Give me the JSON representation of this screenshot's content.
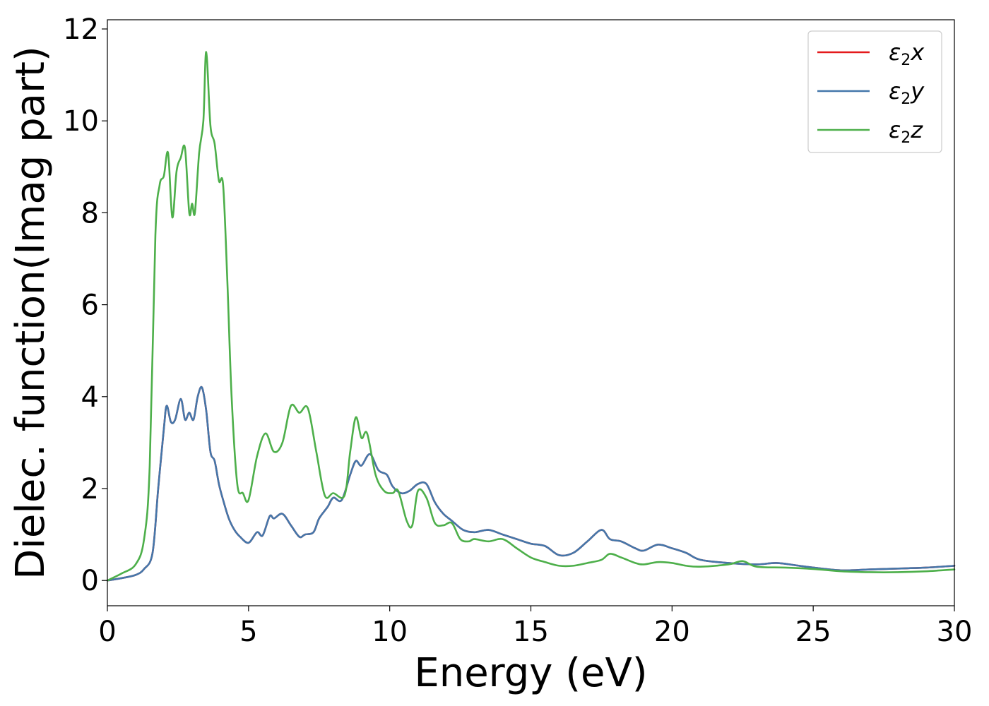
{
  "chart_data": {
    "type": "line",
    "xlabel": "Energy (eV)",
    "ylabel": "Dielec. function(Imag part)",
    "xlim": [
      0,
      30
    ],
    "ylim": [
      -0.55,
      12.2
    ],
    "xticks": [
      0,
      5,
      10,
      15,
      20,
      25,
      30
    ],
    "yticks": [
      0,
      2,
      4,
      6,
      8,
      10,
      12
    ],
    "grid": false,
    "legend_position": "top-right",
    "series": [
      {
        "name": "ε2x",
        "legend_base": "ε",
        "legend_sub": "2",
        "legend_suffix": "x",
        "color": "#e41a1c",
        "x": [
          0,
          0.5,
          1.0,
          1.3,
          1.6,
          1.8,
          2.0,
          2.1,
          2.25,
          2.4,
          2.6,
          2.75,
          2.9,
          3.05,
          3.2,
          3.35,
          3.5,
          3.65,
          3.8,
          3.95,
          4.1,
          4.3,
          4.5,
          4.7,
          5.0,
          5.3,
          5.5,
          5.75,
          5.9,
          6.2,
          6.5,
          6.8,
          7.0,
          7.3,
          7.5,
          7.8,
          8.0,
          8.3,
          8.6,
          8.8,
          9.0,
          9.3,
          9.6,
          9.9,
          10.1,
          10.4,
          10.7,
          11.0,
          11.3,
          11.6,
          11.9,
          12.2,
          12.6,
          13.0,
          13.5,
          14.0,
          14.5,
          15.0,
          15.5,
          16.0,
          16.5,
          17.0,
          17.5,
          17.8,
          18.2,
          18.7,
          19.0,
          19.5,
          20.0,
          20.5,
          21.0,
          22.0,
          23.0,
          23.7,
          24.5,
          25.0,
          26.0,
          27.0,
          28.0,
          29.0,
          30.0
        ],
        "values": [
          0.0,
          0.05,
          0.12,
          0.25,
          0.6,
          2.0,
          3.3,
          3.8,
          3.45,
          3.5,
          3.95,
          3.5,
          3.65,
          3.5,
          4.0,
          4.2,
          3.7,
          2.8,
          2.6,
          2.1,
          1.75,
          1.35,
          1.1,
          0.95,
          0.82,
          1.05,
          0.98,
          1.4,
          1.35,
          1.45,
          1.2,
          0.95,
          1.0,
          1.05,
          1.35,
          1.6,
          1.8,
          1.75,
          2.3,
          2.6,
          2.5,
          2.75,
          2.4,
          2.3,
          2.05,
          1.9,
          1.95,
          2.1,
          2.1,
          1.7,
          1.45,
          1.3,
          1.1,
          1.05,
          1.1,
          1.0,
          0.9,
          0.8,
          0.75,
          0.55,
          0.6,
          0.85,
          1.1,
          0.9,
          0.85,
          0.7,
          0.65,
          0.78,
          0.7,
          0.6,
          0.45,
          0.38,
          0.35,
          0.38,
          0.32,
          0.28,
          0.22,
          0.24,
          0.26,
          0.28,
          0.32
        ]
      },
      {
        "name": "ε2y",
        "legend_base": "ε",
        "legend_sub": "2",
        "legend_suffix": "y",
        "color": "#4477aa",
        "x": [
          0,
          0.5,
          1.0,
          1.3,
          1.6,
          1.8,
          2.0,
          2.1,
          2.25,
          2.4,
          2.6,
          2.75,
          2.9,
          3.05,
          3.2,
          3.35,
          3.5,
          3.65,
          3.8,
          3.95,
          4.1,
          4.3,
          4.5,
          4.7,
          5.0,
          5.3,
          5.5,
          5.75,
          5.9,
          6.2,
          6.5,
          6.8,
          7.0,
          7.3,
          7.5,
          7.8,
          8.0,
          8.3,
          8.6,
          8.8,
          9.0,
          9.3,
          9.6,
          9.9,
          10.1,
          10.4,
          10.7,
          11.0,
          11.3,
          11.6,
          11.9,
          12.2,
          12.6,
          13.0,
          13.5,
          14.0,
          14.5,
          15.0,
          15.5,
          16.0,
          16.5,
          17.0,
          17.5,
          17.8,
          18.2,
          18.7,
          19.0,
          19.5,
          20.0,
          20.5,
          21.0,
          22.0,
          23.0,
          23.7,
          24.5,
          25.0,
          26.0,
          27.0,
          28.0,
          29.0,
          30.0
        ],
        "values": [
          0.0,
          0.05,
          0.12,
          0.25,
          0.6,
          2.0,
          3.3,
          3.8,
          3.45,
          3.5,
          3.95,
          3.5,
          3.65,
          3.5,
          4.0,
          4.2,
          3.7,
          2.8,
          2.6,
          2.1,
          1.75,
          1.35,
          1.1,
          0.95,
          0.82,
          1.05,
          0.98,
          1.4,
          1.35,
          1.45,
          1.2,
          0.95,
          1.0,
          1.05,
          1.35,
          1.6,
          1.8,
          1.75,
          2.3,
          2.6,
          2.5,
          2.75,
          2.4,
          2.3,
          2.05,
          1.9,
          1.95,
          2.1,
          2.1,
          1.7,
          1.45,
          1.3,
          1.1,
          1.05,
          1.1,
          1.0,
          0.9,
          0.8,
          0.75,
          0.55,
          0.6,
          0.85,
          1.1,
          0.9,
          0.85,
          0.7,
          0.65,
          0.78,
          0.7,
          0.6,
          0.45,
          0.38,
          0.35,
          0.38,
          0.32,
          0.28,
          0.22,
          0.24,
          0.26,
          0.28,
          0.32
        ]
      },
      {
        "name": "ε2z",
        "legend_base": "ε",
        "legend_sub": "2",
        "legend_suffix": "z",
        "color": "#4daf4a",
        "x": [
          0,
          0.5,
          1.0,
          1.3,
          1.5,
          1.7,
          1.85,
          2.0,
          2.15,
          2.3,
          2.45,
          2.6,
          2.75,
          2.9,
          3.0,
          3.1,
          3.25,
          3.4,
          3.5,
          3.65,
          3.8,
          3.95,
          4.1,
          4.25,
          4.4,
          4.6,
          4.8,
          5.0,
          5.3,
          5.6,
          5.9,
          6.2,
          6.5,
          6.8,
          7.1,
          7.4,
          7.7,
          8.0,
          8.4,
          8.6,
          8.8,
          9.0,
          9.2,
          9.5,
          9.8,
          10.1,
          10.3,
          10.6,
          10.8,
          11.0,
          11.3,
          11.6,
          11.9,
          12.2,
          12.5,
          12.8,
          13.0,
          13.5,
          14.0,
          14.5,
          15.0,
          15.5,
          16.0,
          16.5,
          17.0,
          17.5,
          17.8,
          18.2,
          18.7,
          19.0,
          19.5,
          20.0,
          20.5,
          21.0,
          22.0,
          22.5,
          23.0,
          24.0,
          25.0,
          26.0,
          27.0,
          28.0,
          29.0,
          30.0
        ],
        "values": [
          0.0,
          0.15,
          0.35,
          0.9,
          2.5,
          7.5,
          8.6,
          8.8,
          9.3,
          7.9,
          8.9,
          9.2,
          9.4,
          8.0,
          8.2,
          8.0,
          9.3,
          10.0,
          11.5,
          9.9,
          9.5,
          8.7,
          8.6,
          6.5,
          4.0,
          2.1,
          1.9,
          1.75,
          2.7,
          3.2,
          2.8,
          3.0,
          3.8,
          3.65,
          3.75,
          2.8,
          1.85,
          1.9,
          1.85,
          2.8,
          3.55,
          3.1,
          3.2,
          2.3,
          1.95,
          1.9,
          1.95,
          1.3,
          1.2,
          1.95,
          1.8,
          1.25,
          1.2,
          1.25,
          0.9,
          0.85,
          0.9,
          0.85,
          0.9,
          0.7,
          0.5,
          0.4,
          0.32,
          0.32,
          0.38,
          0.45,
          0.58,
          0.5,
          0.38,
          0.35,
          0.4,
          0.38,
          0.32,
          0.3,
          0.35,
          0.42,
          0.3,
          0.28,
          0.25,
          0.2,
          0.18,
          0.18,
          0.2,
          0.24
        ]
      }
    ]
  }
}
